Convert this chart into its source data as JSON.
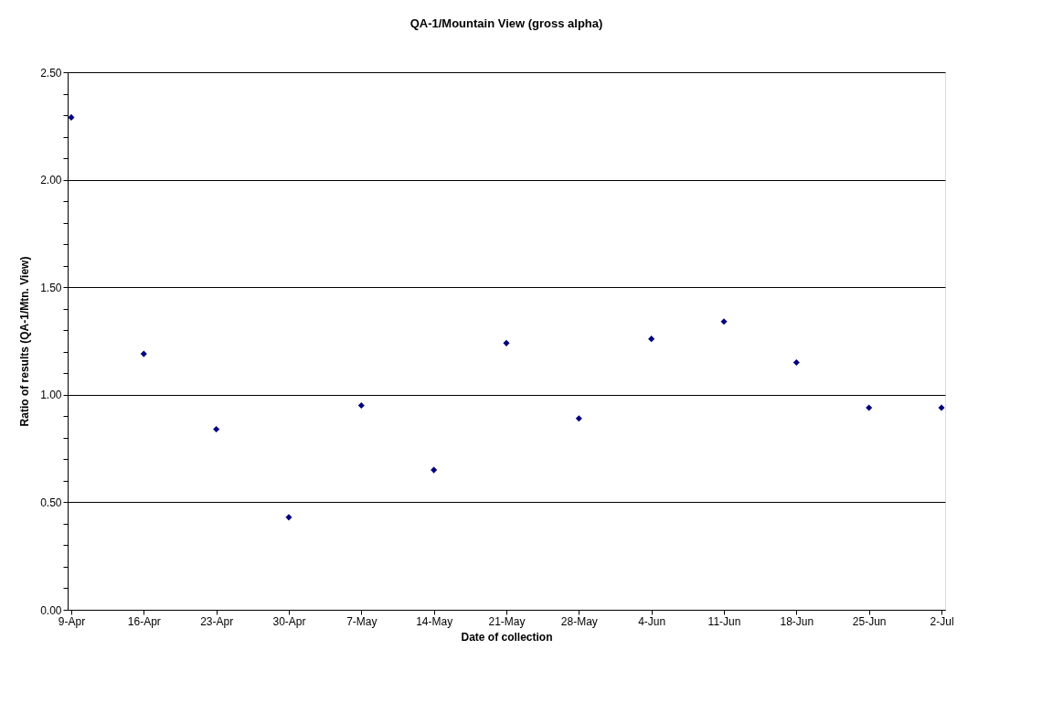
{
  "chart_data": {
    "type": "scatter",
    "title": "QA-1/Mountain View (gross alpha)",
    "xlabel": "Date of collection",
    "ylabel": "Ratio of results (QA-1/Mtn. View)",
    "categories": [
      "9-Apr",
      "16-Apr",
      "23-Apr",
      "30-Apr",
      "7-May",
      "14-May",
      "21-May",
      "28-May",
      "4-Jun",
      "11-Jun",
      "18-Jun",
      "25-Jun",
      "2-Jul"
    ],
    "series": [
      {
        "color": "#000080",
        "values": [
          2.29,
          1.19,
          0.84,
          0.43,
          0.95,
          0.65,
          1.24,
          0.89,
          1.26,
          1.34,
          1.15,
          0.94,
          0.94
        ]
      }
    ],
    "ylim": [
      0,
      2.5
    ],
    "yticks": [
      {
        "value": 0,
        "label": "0.00"
      },
      {
        "value": 0.1,
        "label": null
      },
      {
        "value": 0.2,
        "label": null
      },
      {
        "value": 0.3,
        "label": null
      },
      {
        "value": 0.4,
        "label": null
      },
      {
        "value": 0.5,
        "label": "0.50"
      },
      {
        "value": 0.6,
        "label": null
      },
      {
        "value": 0.7,
        "label": null
      },
      {
        "value": 0.8,
        "label": null
      },
      {
        "value": 0.9,
        "label": null
      },
      {
        "value": 1.0,
        "label": "1.00"
      },
      {
        "value": 1.1,
        "label": null
      },
      {
        "value": 1.2,
        "label": null
      },
      {
        "value": 1.3,
        "label": null
      },
      {
        "value": 1.4,
        "label": null
      },
      {
        "value": 1.5,
        "label": "1.50"
      },
      {
        "value": 1.6,
        "label": null
      },
      {
        "value": 1.7,
        "label": null
      },
      {
        "value": 1.8,
        "label": null
      },
      {
        "value": 1.9,
        "label": null
      },
      {
        "value": 2.0,
        "label": "2.00"
      },
      {
        "value": 2.1,
        "label": null
      },
      {
        "value": 2.2,
        "label": null
      },
      {
        "value": 2.3,
        "label": null
      },
      {
        "value": 2.4,
        "label": null
      },
      {
        "value": 2.5,
        "label": "2.50"
      }
    ],
    "grid": "y",
    "marker": "diamond",
    "legend": false
  }
}
